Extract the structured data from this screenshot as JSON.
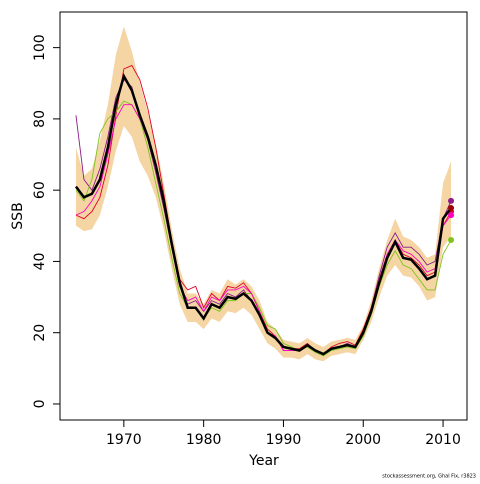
{
  "chart_data": {
    "type": "line",
    "xlabel": "Year",
    "ylabel": "SSB",
    "footnote": "stockassessment.org, Ghal Fix, r3823",
    "x": [
      1964,
      1965,
      1966,
      1967,
      1968,
      1969,
      1970,
      1971,
      1972,
      1973,
      1974,
      1975,
      1976,
      1977,
      1978,
      1979,
      1980,
      1981,
      1982,
      1983,
      1984,
      1985,
      1986,
      1987,
      1988,
      1989,
      1990,
      1991,
      1992,
      1993,
      1994,
      1995,
      1996,
      1997,
      1998,
      1999,
      2000,
      2001,
      2002,
      2003,
      2004,
      2005,
      2006,
      2007,
      2008,
      2009,
      2010,
      2011
    ],
    "band": {
      "color": "#f5d5a3",
      "upper": [
        72,
        64,
        66,
        74,
        84,
        98,
        106,
        99,
        90,
        82,
        73,
        62,
        49,
        38,
        31,
        31,
        28,
        32,
        31,
        35,
        33.5,
        35,
        33,
        29,
        23,
        21,
        18,
        17.5,
        17,
        18.5,
        17,
        16,
        17.5,
        18,
        18.5,
        18,
        22,
        29,
        38,
        46,
        52,
        47,
        46,
        44,
        41,
        42,
        62,
        68
      ],
      "lower": [
        50,
        48.5,
        49,
        53,
        61,
        71,
        78,
        75,
        68,
        64,
        58,
        49,
        38,
        28,
        23,
        23,
        21,
        24,
        23,
        26,
        25.5,
        27,
        25,
        21,
        17,
        15.5,
        13,
        13,
        12.5,
        14,
        12.5,
        12,
        13.5,
        14,
        14.5,
        14,
        18,
        23,
        30,
        36,
        39,
        36,
        35.5,
        33,
        29,
        30,
        44,
        47
      ]
    },
    "series": [
      {
        "color": "#8b1a8b",
        "values": [
          81,
          63,
          60,
          66,
          75,
          86,
          91,
          89,
          80,
          74,
          65,
          55,
          44,
          33,
          28,
          29,
          26,
          29,
          28,
          31,
          30,
          32,
          29,
          25,
          20,
          19,
          15,
          15,
          15,
          16.5,
          15,
          14,
          15.5,
          16,
          17,
          16,
          20,
          27,
          36,
          44,
          48,
          44,
          44,
          42,
          39,
          40,
          52,
          57
        ]
      },
      {
        "color": "#e0002a",
        "values": [
          53,
          52,
          54,
          58,
          67,
          81,
          94,
          95,
          91,
          83,
          72,
          59,
          46,
          35,
          32,
          33,
          27,
          31,
          29,
          33,
          32.5,
          34,
          31,
          26,
          21,
          19,
          16,
          15.5,
          15.5,
          17,
          15,
          14,
          16,
          17,
          17.5,
          16.5,
          21,
          27,
          35,
          42,
          46,
          42,
          41,
          39,
          36,
          37,
          50,
          54
        ]
      },
      {
        "color": "#7fc31c",
        "values": [
          60,
          57,
          63,
          76,
          80,
          82,
          85,
          84,
          80,
          72,
          62,
          52,
          41,
          31,
          27,
          27,
          24,
          27,
          26,
          29,
          29,
          31,
          31,
          27,
          22,
          21,
          17,
          16,
          15,
          16,
          14.5,
          13.5,
          15,
          15.5,
          16,
          15.5,
          19,
          25,
          33,
          39,
          43,
          39,
          38,
          35,
          32,
          32,
          42,
          46
        ]
      },
      {
        "color": "#ff00c0",
        "values": [
          53,
          54,
          57,
          61,
          70,
          80,
          84,
          84,
          80,
          75,
          66,
          56,
          44,
          33,
          29,
          30,
          26,
          30,
          29,
          32,
          32,
          33,
          31,
          26,
          20,
          19,
          15,
          15,
          15,
          16.5,
          15,
          14,
          15.5,
          16,
          16.5,
          16,
          20,
          26,
          35,
          42,
          46,
          43,
          42,
          40,
          37,
          38,
          50,
          53
        ]
      },
      {
        "color": "#000000",
        "values": [
          61,
          58,
          59,
          63,
          72,
          84,
          92,
          88,
          81,
          75,
          67,
          57,
          45,
          34,
          27,
          27,
          24,
          28,
          27,
          30,
          29.5,
          31,
          29,
          25,
          20,
          18.5,
          16,
          15.5,
          15,
          16.5,
          15,
          14,
          15.5,
          16,
          16.5,
          16,
          20,
          26,
          34,
          41,
          45.5,
          41,
          40.5,
          38,
          35,
          36,
          52,
          55
        ]
      }
    ],
    "xlim": [
      1962,
      2013
    ],
    "ylim": [
      -4.5,
      110
    ],
    "xticks": [
      1970,
      1980,
      1990,
      2000,
      2010
    ],
    "yticks": [
      0,
      20,
      40,
      60,
      80,
      100
    ]
  }
}
